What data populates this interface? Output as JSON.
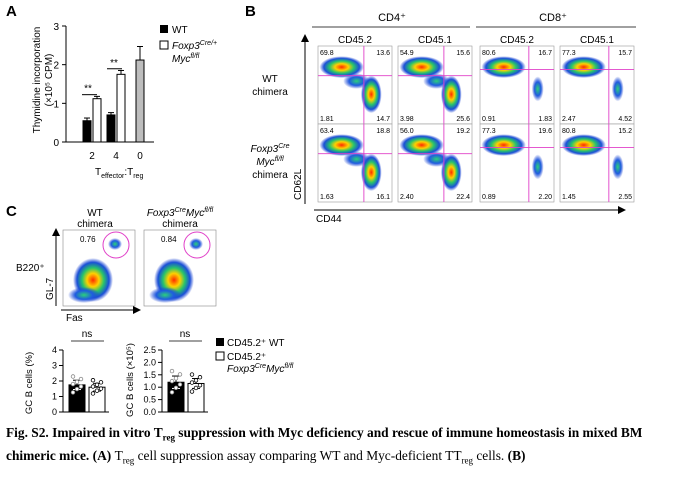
{
  "panelA": {
    "label": "A",
    "ylabel_line1": "Thymidine incorporation",
    "ylabel_line2": "(×10⁵ CPM)",
    "legend_wt": "WT",
    "legend_ko_line1": "Foxp3",
    "legend_ko_sup1": "Cre/+",
    "legend_ko_line2": "Myc",
    "legend_ko_sup2": "fl/fl",
    "xlabel_main": "T",
    "xlabel_sub1": "effector",
    "xlabel_mid": ":T",
    "xlabel_sub2": "reg",
    "sig1": "**",
    "sig2": "**",
    "colors": {
      "wt": "#000000",
      "ko": "#ffffff",
      "ctrl": "#bdbdbd"
    }
  },
  "chart_data": {
    "type": "bar",
    "categories": [
      "2",
      "4",
      "0"
    ],
    "series": [
      {
        "name": "WT",
        "values": [
          0.55,
          0.7,
          null
        ],
        "errors": [
          0.07,
          0.06,
          null
        ]
      },
      {
        "name": "Foxp3Cre/+Mycfl/fl",
        "values": [
          1.12,
          1.75,
          null
        ],
        "errors": [
          0.06,
          0.1,
          null
        ]
      },
      {
        "name": "",
        "values": [
          null,
          null,
          2.12
        ],
        "errors": [
          null,
          null,
          0.35
        ]
      }
    ],
    "yticks": [
      "0",
      "1",
      "2",
      "3"
    ],
    "ylim": [
      0,
      3
    ]
  },
  "panelB": {
    "label": "B",
    "group_cd4": "CD4⁺",
    "group_cd8": "CD8⁺",
    "col_headers": [
      "CD45.2",
      "CD45.1",
      "CD45.2",
      "CD45.1"
    ],
    "row1_label_l1": "WT",
    "row1_label_l2": "chimera",
    "row2_label_l1": "Foxp3",
    "row2_label_sup1": "Cre",
    "row2_label_l2": "Myc",
    "row2_label_sup2": "fl/fl",
    "row2_label_l3": "chimera",
    "yaxis": "CD62L",
    "xaxis": "CD44",
    "quadrants": [
      [
        [
          "69.8",
          "13.6",
          "1.81",
          "14.7"
        ],
        [
          "54.9",
          "15.6",
          "3.98",
          "25.6"
        ],
        [
          "80.6",
          "16.7",
          "0.91",
          "1.83"
        ],
        [
          "77.3",
          "15.7",
          "2.47",
          "4.52"
        ]
      ],
      [
        [
          "63.4",
          "18.8",
          "1.63",
          "16.1"
        ],
        [
          "56.0",
          "19.2",
          "2.40",
          "22.4"
        ],
        [
          "77.3",
          "19.6",
          "0.89",
          "2.20"
        ],
        [
          "80.8",
          "15.2",
          "1.45",
          "2.55"
        ]
      ]
    ]
  },
  "panelC": {
    "label": "C",
    "wt_l1": "WT",
    "wt_l2": "chimera",
    "ko_l1": "Foxp3",
    "ko_sup1": "Cre",
    "ko_l2": "Myc",
    "ko_sup2": "fl/fl",
    "ko_l3": "chimera",
    "gate_wt": "0.76",
    "gate_ko": "0.84",
    "b220": "B220⁺",
    "gl7": "GL-7",
    "fas": "Fas",
    "ns1": "ns",
    "ns2": "ns",
    "ylabel1": "GC B cells (%)",
    "ylabel2": "GC B cells (×10⁵)",
    "yticks1": [
      "0",
      "1",
      "2",
      "3",
      "4"
    ],
    "yticks2": [
      "0.0",
      "0.5",
      "1.0",
      "1.5",
      "2.0",
      "2.5"
    ],
    "legend_wt": "CD45.2⁺ WT",
    "legend_ko_l1": "CD45.2⁺",
    "legend_ko_l2": "Foxp3",
    "legend_ko_sup1": "Cre",
    "legend_ko_l3": "Myc",
    "legend_ko_sup2": "fl/fl"
  },
  "chart_data_c": [
    {
      "type": "bar",
      "categories": [
        "CD45.2⁺ WT",
        "CD45.2⁺ Foxp3CreMycfl/fl"
      ],
      "values": [
        1.75,
        1.6
      ],
      "errors": [
        0.3,
        0.25
      ],
      "ylim": [
        0,
        4
      ],
      "ylabel": "GC B cells (%)"
    },
    {
      "type": "bar",
      "categories": [
        "CD45.2⁺ WT",
        "CD45.2⁺ Foxp3CreMycfl/fl"
      ],
      "values": [
        1.2,
        1.15
      ],
      "errors": [
        0.25,
        0.2
      ],
      "ylim": [
        0,
        2.5
      ],
      "ylabel": "GC B cells (×10⁵)"
    }
  ],
  "caption": {
    "lead": "Fig. S2. Impaired in vitro T",
    "lead_sub": "reg",
    "lead_rest": " suppression with Myc deficiency and rescue of immune homeostasis in mixed BM chimeric mice.",
    "a_label": " (A) ",
    "a_t": "T",
    "a_sub": "reg",
    "a_text": " cell suppression assay comparing WT and Myc-deficient T",
    "a_sub2": "reg",
    "a_text2": " cells. ",
    "b_label": "(B)"
  }
}
